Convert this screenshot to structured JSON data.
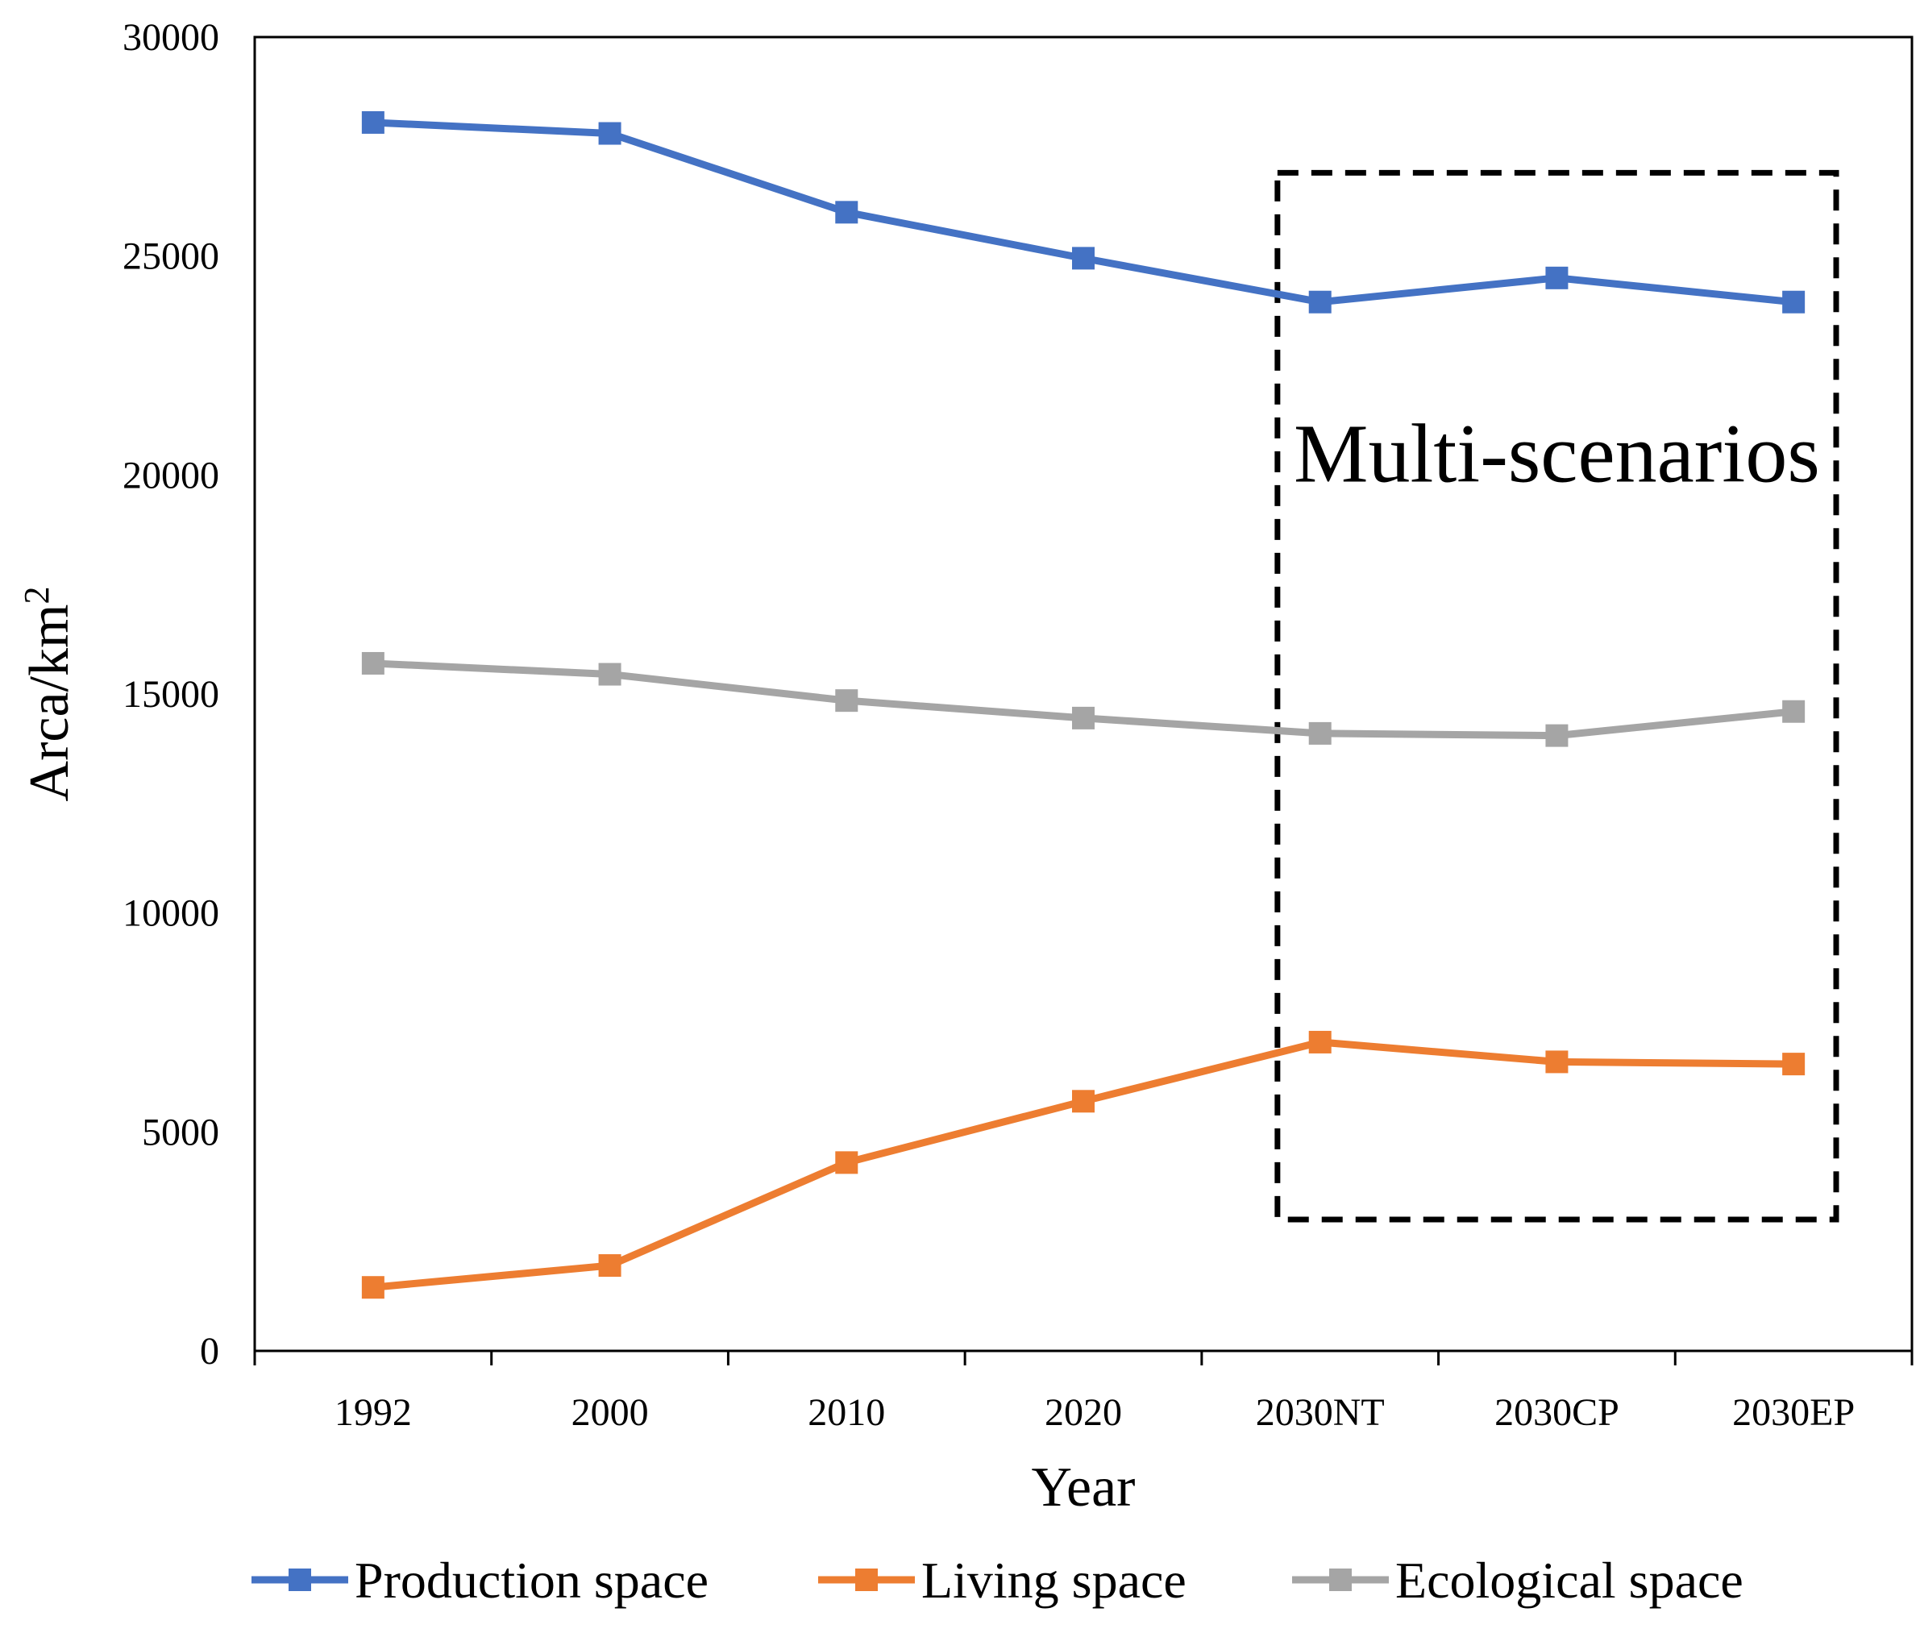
{
  "chart_data": {
    "type": "line",
    "title": "",
    "xlabel": "Year",
    "ylabel": "Arca/km",
    "ylabel_superscript": "2",
    "categories": [
      "1992",
      "2000",
      "2010",
      "2020",
      "2030NT",
      "2030CP",
      "2030EP"
    ],
    "ylim": [
      0,
      30000
    ],
    "yticks": [
      "0",
      "5000",
      "10000",
      "15000",
      "20000",
      "25000",
      "30000"
    ],
    "grid": false,
    "legend_position": "bottom",
    "series": [
      {
        "name": "Production space",
        "color": "#4472C4",
        "values": [
          28050,
          27800,
          26000,
          24950,
          23950,
          24500,
          23950
        ]
      },
      {
        "name": "Living space",
        "color": "#ED7D31",
        "values": [
          1450,
          1950,
          4300,
          5700,
          7050,
          6600,
          6550
        ]
      },
      {
        "name": "Ecological space",
        "color": "#A5A5A5",
        "values": [
          15700,
          15450,
          14850,
          14450,
          14100,
          14050,
          14600
        ]
      }
    ],
    "annotation": {
      "text": "Multi-scenarios",
      "categories": [
        "2030NT",
        "2030CP",
        "2030EP"
      ],
      "y_range": [
        3000,
        26900
      ]
    }
  }
}
